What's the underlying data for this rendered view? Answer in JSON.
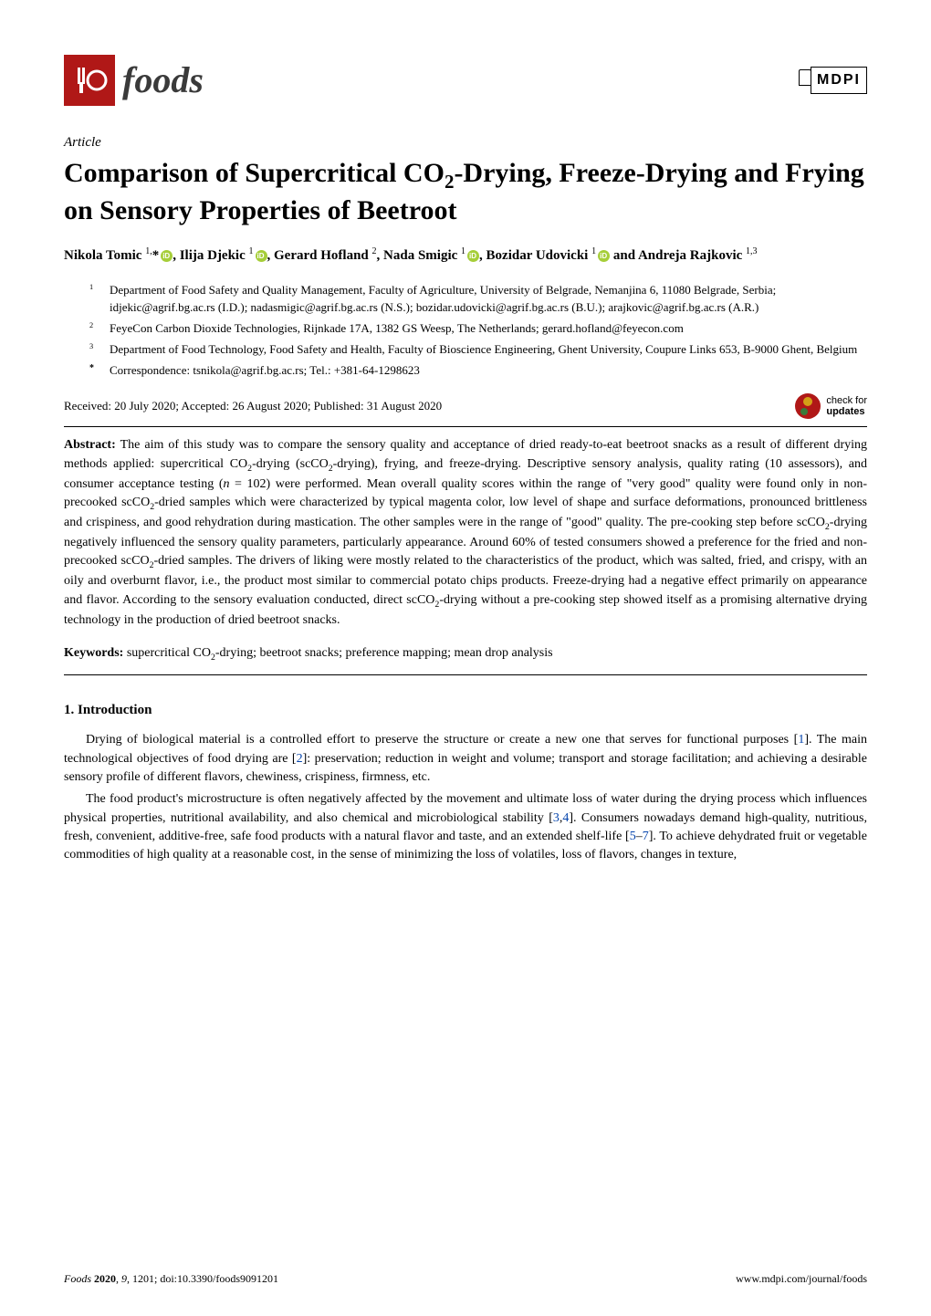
{
  "journal": {
    "logo_text": "foods",
    "publisher_logo": "MDPI"
  },
  "article": {
    "type": "Article",
    "title_html": "Comparison of Supercritical CO<sub>2</sub>-Drying, Freeze-Drying and Frying on Sensory Properties of Beetroot",
    "authors_html": "Nikola Tomic <sup>1,</sup>*<span class=\"orcid\"></span>, Ilija Djekic <sup>1</sup><span class=\"orcid\"></span>, Gerard Hofland <sup>2</sup>, Nada Smigic <sup>1</sup><span class=\"orcid\"></span>, Bozidar Udovicki <sup>1</sup><span class=\"orcid\"></span> and Andreja Rajkovic <sup>1,3</sup>",
    "affiliations": [
      {
        "num": "1",
        "text": "Department of Food Safety and Quality Management, Faculty of Agriculture, University of Belgrade, Nemanjina 6, 11080 Belgrade, Serbia; idjekic@agrif.bg.ac.rs (I.D.); nadasmigic@agrif.bg.ac.rs (N.S.); bozidar.udovicki@agrif.bg.ac.rs (B.U.); arajkovic@agrif.bg.ac.rs (A.R.)"
      },
      {
        "num": "2",
        "text": "FeyeCon Carbon Dioxide Technologies, Rijnkade 17A, 1382 GS Weesp, The Netherlands; gerard.hofland@feyecon.com"
      },
      {
        "num": "3",
        "text": "Department of Food Technology, Food Safety and Health, Faculty of Bioscience Engineering, Ghent University, Coupure Links 653, B-9000 Ghent, Belgium"
      },
      {
        "num": "*",
        "text": "Correspondence: tsnikola@agrif.bg.ac.rs; Tel.: +381-64-1298623"
      }
    ],
    "dates": "Received: 20 July 2020; Accepted: 26 August 2020; Published: 31 August 2020",
    "check_updates_line1": "check for",
    "check_updates_line2": "updates",
    "abstract_label": "Abstract:",
    "abstract_html": "The aim of this study was to compare the sensory quality and acceptance of dried ready-to-eat beetroot snacks as a result of different drying methods applied: supercritical CO<sub>2</sub>-drying (scCO<sub>2</sub>-drying), frying, and freeze-drying. Descriptive sensory analysis, quality rating (10 assessors), and consumer acceptance testing (<i>n</i> = 102) were performed. Mean overall quality scores within the range of \"very good\" quality were found only in non-precooked scCO<sub>2</sub>-dried samples which were characterized by typical magenta color, low level of shape and surface deformations, pronounced brittleness and crispiness, and good rehydration during mastication. The other samples were in the range of \"good\" quality. The pre-cooking step before scCO<sub>2</sub>-drying negatively influenced the sensory quality parameters, particularly appearance. Around 60% of tested consumers showed a preference for the fried and non-precooked scCO<sub>2</sub>-dried samples. The drivers of liking were mostly related to the characteristics of the product, which was salted, fried, and crispy, with an oily and overburnt flavor, i.e., the product most similar to commercial potato chips products. Freeze-drying had a negative effect primarily on appearance and flavor. According to the sensory evaluation conducted, direct scCO<sub>2</sub>-drying without a pre-cooking step showed itself as a promising alternative drying technology in the production of dried beetroot snacks.",
    "keywords_label": "Keywords:",
    "keywords_html": "supercritical CO<sub>2</sub>-drying; beetroot snacks; preference mapping; mean drop analysis"
  },
  "sections": {
    "intro_heading": "1. Introduction",
    "para1_html": "Drying of biological material is a controlled effort to preserve the structure or create a new one that serves for functional purposes [<span class=\"ref-link\">1</span>]. The main technological objectives of food drying are [<span class=\"ref-link\">2</span>]: preservation; reduction in weight and volume; transport and storage facilitation; and achieving a desirable sensory profile of different flavors, chewiness, crispiness, firmness, etc.",
    "para2_html": "The food product's microstructure is often negatively affected by the movement and ultimate loss of water during the drying process which influences physical properties, nutritional availability, and also chemical and microbiological stability [<span class=\"ref-link\">3</span>,<span class=\"ref-link\">4</span>]. Consumers nowadays demand high-quality, nutritious, fresh, convenient, additive-free, safe food products with a natural flavor and taste, and an extended shelf-life [<span class=\"ref-link\">5</span>–<span class=\"ref-link\">7</span>]. To achieve dehydrated fruit or vegetable commodities of high quality at a reasonable cost, in the sense of minimizing the loss of volatiles, loss of flavors, changes in texture,"
  },
  "footer": {
    "left": "Foods 2020, 9, 1201; doi:10.3390/foods9091201",
    "right": "www.mdpi.com/journal/foods"
  },
  "colors": {
    "brand_red": "#b01817",
    "orcid_green": "#a6ce39",
    "link_blue": "#0645ad",
    "text": "#000000",
    "background": "#ffffff"
  }
}
